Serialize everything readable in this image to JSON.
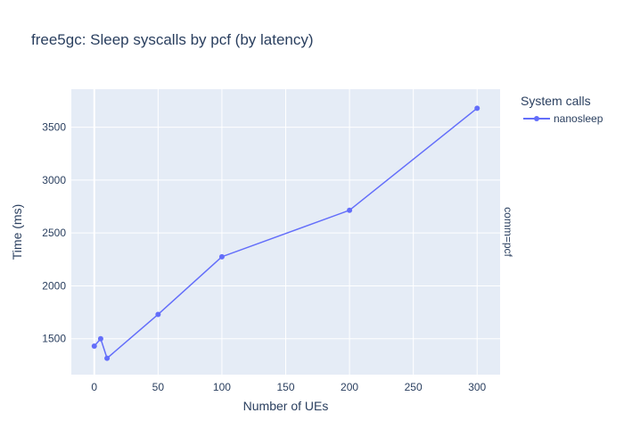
{
  "chart_data": {
    "type": "line",
    "title": "free5gc: Sleep syscalls by pcf (by latency)",
    "xlabel": "Number of UEs",
    "ylabel": "Time (ms)",
    "xlim": [
      -18,
      318
    ],
    "ylim": [
      1160,
      3860
    ],
    "x_ticks": [
      0,
      50,
      100,
      150,
      200,
      250,
      300
    ],
    "y_ticks": [
      1500,
      2000,
      2500,
      3000,
      3500
    ],
    "grid": true,
    "legend": {
      "title": "System calls",
      "placement": "right"
    },
    "facet_label": "comm=pcf",
    "series": [
      {
        "name": "nanosleep",
        "color": "#636efa",
        "x": [
          0,
          5,
          10,
          50,
          100,
          200,
          300
        ],
        "y": [
          1430,
          1500,
          1315,
          1730,
          2275,
          2715,
          3680
        ]
      }
    ]
  },
  "colors": {
    "plot_bg": "#e5ecf6",
    "grid": "#ffffff",
    "text": "#2a3f5f"
  }
}
